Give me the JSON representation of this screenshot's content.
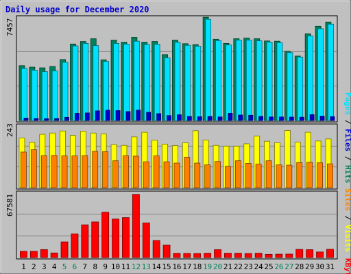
{
  "chart_data": {
    "type": "bar",
    "title": "Daily usage for December 2020",
    "categories": [
      "1",
      "2",
      "3",
      "4",
      "5",
      "6",
      "7",
      "8",
      "9",
      "10",
      "11",
      "12",
      "13",
      "14",
      "15",
      "16",
      "17",
      "18",
      "19",
      "20",
      "21",
      "22",
      "23",
      "24",
      "25",
      "26",
      "27",
      "28",
      "29",
      "30",
      "31"
    ],
    "weekend_days": [
      "5",
      "6",
      "12",
      "13",
      "19",
      "20",
      "26",
      "27"
    ],
    "panels": [
      {
        "name": "hits-files-pages",
        "ymax_label": "7457",
        "ylim": [
          0,
          7457
        ],
        "grid": true,
        "series_label": [
          "Pages",
          "Files",
          "Hits"
        ],
        "series": [
          {
            "name": "Hits",
            "color": "#00805c",
            "values": [
              3960,
              3850,
              3800,
              3900,
              4400,
              5520,
              5700,
              5900,
              4380,
              5800,
              5650,
              6000,
              5650,
              5700,
              4750,
              5800,
              5540,
              5480,
              7450,
              5860,
              5560,
              5900,
              5950,
              5900,
              5740,
              5720,
              5000,
              4650,
              6260,
              6800,
              7100
            ]
          },
          {
            "name": "Files",
            "color": "#00e0ff",
            "values": [
              3760,
              3630,
              3530,
              3580,
              4200,
              5380,
              5560,
              5400,
              4260,
              5560,
              5510,
              5720,
              5480,
              5500,
              4520,
              5640,
              5420,
              5360,
              7300,
              5760,
              5450,
              5800,
              5800,
              5750,
              5660,
              5620,
              4900,
              4580,
              6100,
              6620,
              6950
            ]
          },
          {
            "name": "Pages",
            "color": "#0000cc",
            "values": [
              180,
              150,
              140,
              150,
              230,
              520,
              550,
              700,
              750,
              720,
              650,
              750,
              600,
              500,
              360,
              420,
              300,
              280,
              300,
              260,
              520,
              400,
              380,
              300,
              260,
              260,
              250,
              240,
              430,
              320,
              280
            ]
          }
        ]
      },
      {
        "name": "visits-sites",
        "ymax_label": "243",
        "ylim": [
          0,
          243
        ],
        "grid": true,
        "series_label": [
          "Sites",
          "Visits"
        ],
        "series": [
          {
            "name": "Visits",
            "color": "#ffff00",
            "values": [
              194,
              177,
              208,
              213,
              221,
              204,
              220,
              213,
              210,
              168,
              165,
              198,
              216,
              185,
              170,
              164,
              175,
              222,
              186,
              165,
              162,
              162,
              171,
              201,
              181,
              175,
              223,
              178,
              216,
              182,
              190
            ]
          },
          {
            "name": "Sites",
            "color": "#ff8000",
            "values": [
              139,
              148,
              125,
              126,
              124,
              124,
              125,
              142,
              141,
              105,
              125,
              123,
              101,
              124,
              101,
              96,
              119,
              96,
              89,
              102,
              84,
              105,
              95,
              92,
              105,
              89,
              88,
              98,
              99,
              97,
              93
            ]
          }
        ]
      },
      {
        "name": "kbytes",
        "ymax_label": "67581",
        "ylim": [
          0,
          67581
        ],
        "grid": true,
        "series_label": [
          "KBytes"
        ],
        "series": [
          {
            "name": "KBytes",
            "color": "#ff0000",
            "values": [
              6500,
              6500,
              8300,
              4800,
              16300,
              24600,
              34000,
              37000,
              47000,
              40000,
              41500,
              65600,
              36000,
              17700,
              12900,
              4400,
              4300,
              4200,
              4500,
              8200,
              4500,
              4500,
              4200,
              4500,
              3300,
              3500,
              3600,
              8500,
              8200,
              5800,
              8600
            ]
          }
        ]
      }
    ]
  }
}
